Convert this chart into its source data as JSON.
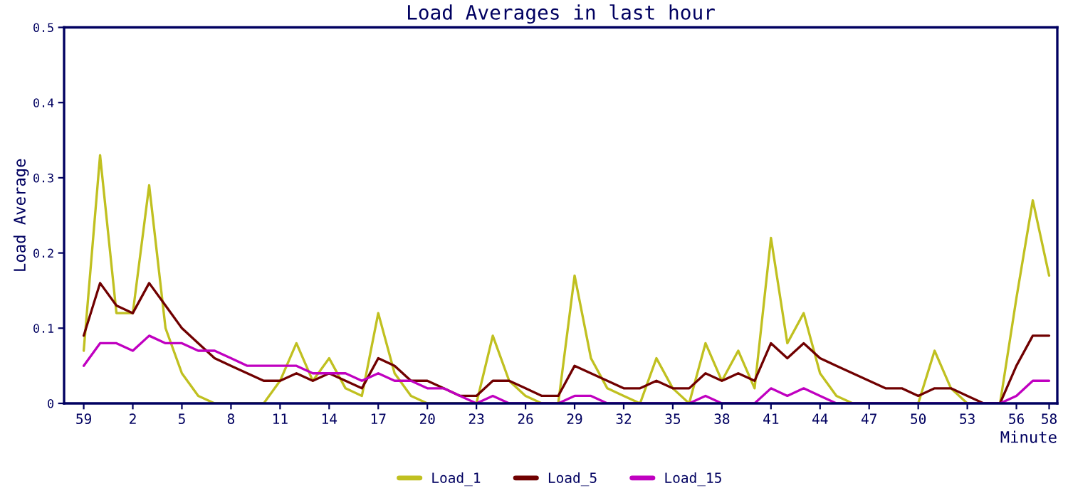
{
  "chart_data": {
    "type": "line",
    "title": "Load Averages in last hour",
    "xlabel": "Minute",
    "ylabel": "Load Average",
    "categories": [
      "59",
      null,
      null,
      "2",
      null,
      null,
      "5",
      null,
      null,
      "8",
      null,
      null,
      "11",
      null,
      null,
      "14",
      null,
      null,
      "17",
      null,
      null,
      "20",
      null,
      null,
      "23",
      null,
      null,
      "26",
      null,
      null,
      "29",
      null,
      null,
      "32",
      null,
      null,
      "35",
      null,
      null,
      "38",
      null,
      null,
      "41",
      null,
      null,
      "44",
      null,
      null,
      "47",
      null,
      null,
      "50",
      null,
      null,
      "53",
      null,
      null,
      "56",
      null,
      "58"
    ],
    "series": [
      {
        "name": "Load_1",
        "color": "#c0c020",
        "values": [
          0.07,
          0.33,
          0.12,
          0.12,
          0.29,
          0.1,
          0.04,
          0.01,
          0,
          0,
          0,
          0,
          0.03,
          0.08,
          0.03,
          0.06,
          0.02,
          0.01,
          0.12,
          0.04,
          0.01,
          0,
          0,
          0,
          0,
          0.09,
          0.03,
          0.01,
          0,
          0,
          0.17,
          0.06,
          0.02,
          0.01,
          0,
          0.06,
          0.02,
          0,
          0.08,
          0.03,
          0.07,
          0.02,
          0.22,
          0.08,
          0.12,
          0.04,
          0.01,
          0,
          0,
          0,
          0,
          0,
          0.07,
          0.02,
          0,
          0,
          0,
          0.14,
          0.27,
          0.17
        ]
      },
      {
        "name": "Load_5",
        "color": "#700000",
        "values": [
          0.09,
          0.16,
          0.13,
          0.12,
          0.16,
          0.13,
          0.1,
          0.08,
          0.06,
          0.05,
          0.04,
          0.03,
          0.03,
          0.04,
          0.03,
          0.04,
          0.03,
          0.02,
          0.06,
          0.05,
          0.03,
          0.03,
          0.02,
          0.01,
          0.01,
          0.03,
          0.03,
          0.02,
          0.01,
          0.01,
          0.05,
          0.04,
          0.03,
          0.02,
          0.02,
          0.03,
          0.02,
          0.02,
          0.04,
          0.03,
          0.04,
          0.03,
          0.08,
          0.06,
          0.08,
          0.06,
          0.05,
          0.04,
          0.03,
          0.02,
          0.02,
          0.01,
          0.02,
          0.02,
          0.01,
          0,
          0,
          0.05,
          0.09,
          0.09
        ]
      },
      {
        "name": "Load_15",
        "color": "#c000c0",
        "values": [
          0.05,
          0.08,
          0.08,
          0.07,
          0.09,
          0.08,
          0.08,
          0.07,
          0.07,
          0.06,
          0.05,
          0.05,
          0.05,
          0.05,
          0.04,
          0.04,
          0.04,
          0.03,
          0.04,
          0.03,
          0.03,
          0.02,
          0.02,
          0.01,
          0,
          0.01,
          0,
          0,
          0,
          0,
          0.01,
          0.01,
          0,
          0,
          0,
          0,
          0,
          0,
          0.01,
          0,
          0,
          0,
          0.02,
          0.01,
          0.02,
          0.01,
          0,
          0,
          0,
          0,
          0,
          0,
          0,
          0,
          0,
          0,
          0,
          0.01,
          0.03,
          0.03
        ]
      }
    ],
    "ylim": [
      0,
      0.5
    ],
    "yticks": [
      0,
      0.1,
      0.2,
      0.3,
      0.4,
      0.5
    ],
    "grid": false,
    "legend": "bottom",
    "marker": "none",
    "line_style": "solid"
  }
}
